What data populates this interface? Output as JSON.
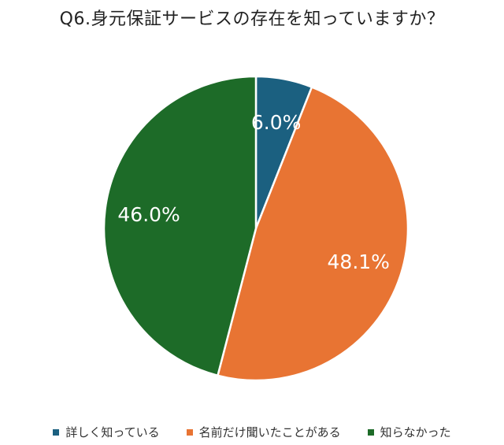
{
  "chart_data": {
    "type": "pie",
    "title": "Q6.身元保証サービスの存在を知っていますか？",
    "categories": [
      "詳しく知っている",
      "名前だけ聞いたことがある",
      "知らなかった"
    ],
    "values": [
      6.0,
      48.1,
      46.0
    ],
    "labels": [
      "6.0%",
      "48.1%",
      "46.0%"
    ],
    "colors": [
      "#1b6080",
      "#e87433",
      "#1d6b28"
    ],
    "legend_position": "bottom",
    "start_angle": "12 o'clock",
    "direction": "clockwise"
  }
}
